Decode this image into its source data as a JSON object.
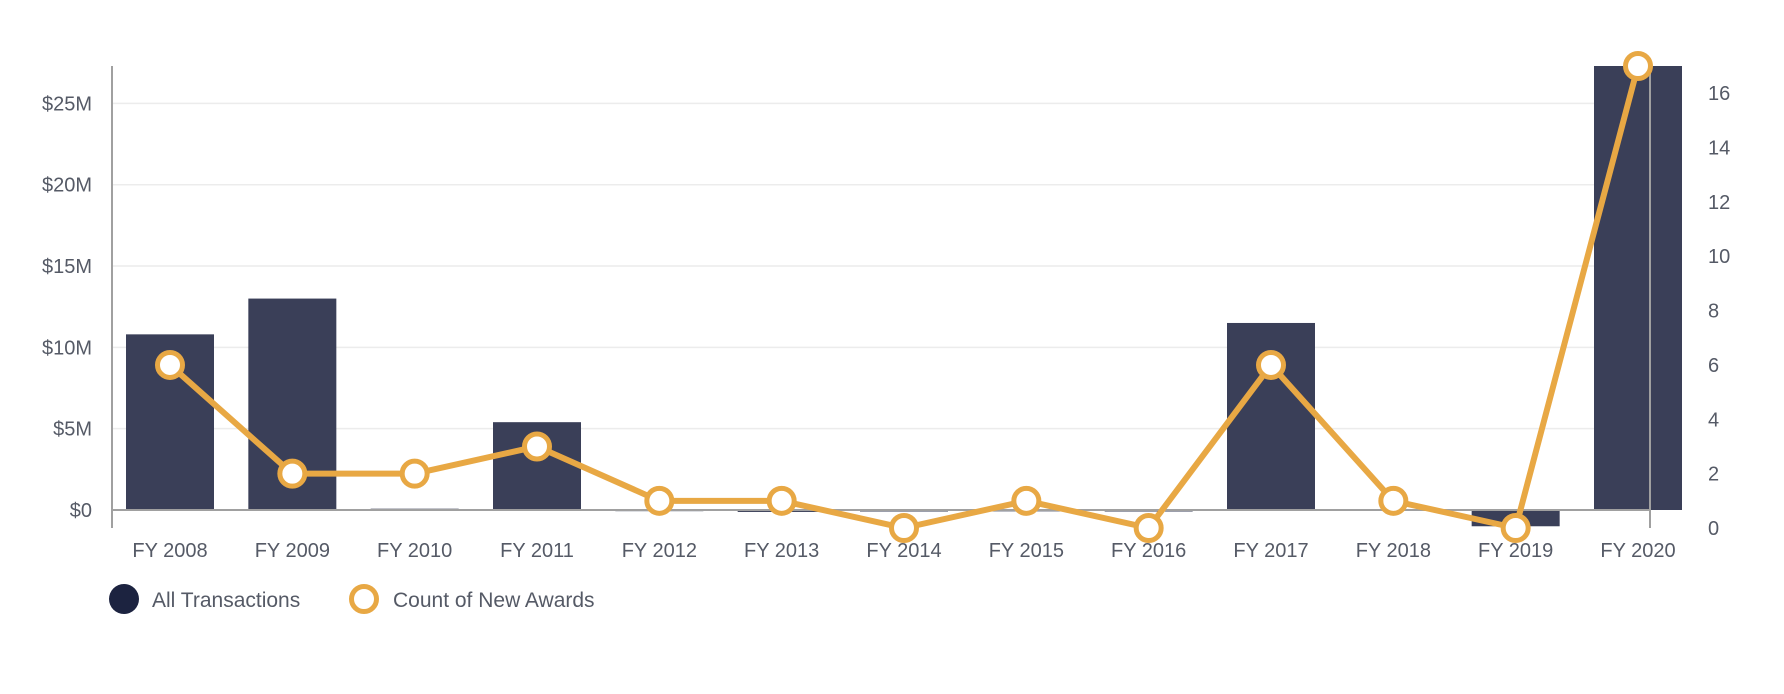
{
  "chart_data": {
    "type": "bar",
    "categories": [
      "FY 2008",
      "FY 2009",
      "FY 2010",
      "FY 2011",
      "FY 2012",
      "FY 2013",
      "FY 2014",
      "FY 2015",
      "FY 2016",
      "FY 2017",
      "FY 2018",
      "FY 2019",
      "FY 2020"
    ],
    "y_left": {
      "ticks": [
        0,
        5000000,
        10000000,
        15000000,
        20000000,
        25000000
      ],
      "tick_labels": [
        "$0",
        "$5M",
        "$10M",
        "$15M",
        "$20M",
        "$25M"
      ],
      "range": [
        -1000000,
        27300000
      ]
    },
    "y_right": {
      "ticks": [
        0,
        2,
        4,
        6,
        8,
        10,
        12,
        14,
        16
      ],
      "tick_labels": [
        "0",
        "2",
        "4",
        "6",
        "8",
        "10",
        "12",
        "14",
        "16"
      ],
      "range": [
        0,
        17
      ]
    },
    "series": [
      {
        "name": "All Transactions",
        "type": "bar",
        "axis": "left",
        "color": "#3a3f58",
        "values": [
          10800000,
          13000000,
          80000,
          5400000,
          20000,
          -120000,
          0,
          10000,
          0,
          11500000,
          50000,
          -1000000,
          27300000
        ]
      },
      {
        "name": "Count of New Awards",
        "type": "line",
        "axis": "right",
        "color": "#e8a844",
        "values": [
          6,
          2,
          2,
          3,
          1,
          1,
          0,
          1,
          0,
          6,
          1,
          0,
          17
        ]
      }
    ],
    "legend": {
      "placement": "bottom-left",
      "items": [
        {
          "label": "All Transactions",
          "marker": "filled-circle",
          "color": "#1c2340"
        },
        {
          "label": "Count of New Awards",
          "marker": "ring",
          "color": "#e8a844"
        }
      ]
    },
    "grid": true
  }
}
